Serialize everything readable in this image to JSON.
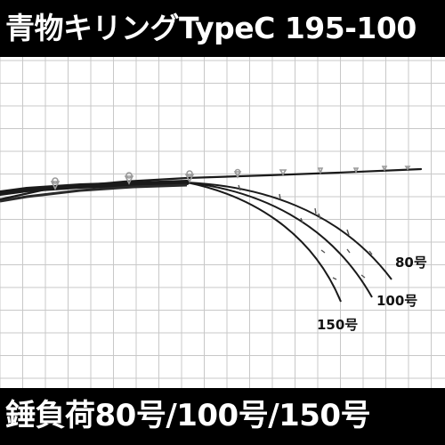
{
  "header": {
    "title": "青物キリングTypeC 195-100"
  },
  "footer": {
    "caption": "錘負荷80号/100号/150号"
  },
  "curve_labels": {
    "load_80": "80号",
    "load_100": "100号",
    "load_150": "150号"
  },
  "colors": {
    "banner_bg": "#000000",
    "banner_text": "#ffffff",
    "grid_line": "#c8c8c8",
    "rod_blank": "#1a1a1a",
    "guide_metal": "#9a9a9a"
  }
}
